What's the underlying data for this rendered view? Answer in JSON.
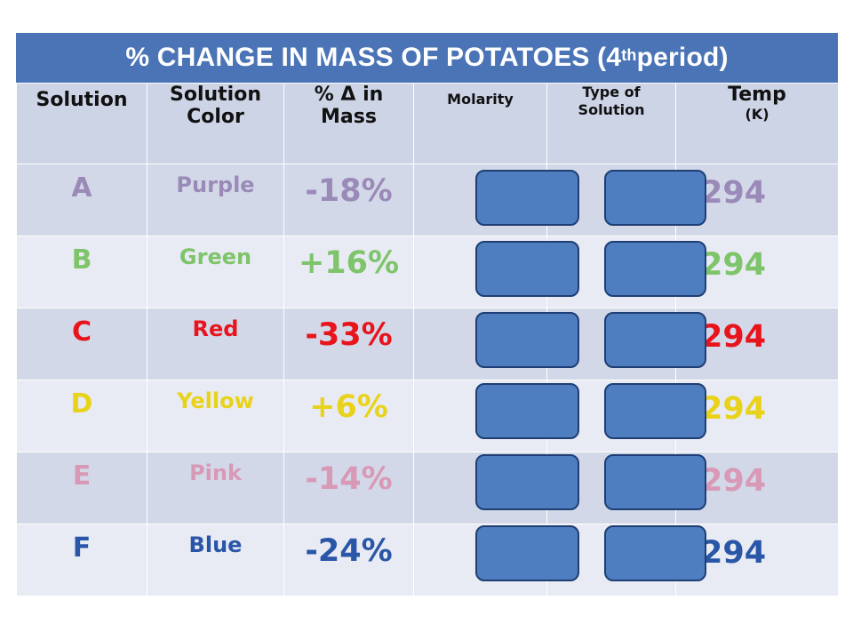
{
  "title": {
    "main": "% CHANGE IN MASS OF POTATOES (4",
    "sup": "th",
    "tail": " period)"
  },
  "headers": {
    "solution": "Solution",
    "solution_color": "Solution Color",
    "pct_change": "% Δ in Mass",
    "molarity": "Molarity",
    "type_of_solution": "Type of Solution",
    "temp": "Temp",
    "temp_unit": "(K)"
  },
  "rows": [
    {
      "letter": "A",
      "color": "Purple",
      "pct": "-18%",
      "temp": "294",
      "text_color": "#9a8ab8"
    },
    {
      "letter": "B",
      "color": "Green",
      "pct": "+16%",
      "temp": "294",
      "text_color": "#7ec46a"
    },
    {
      "letter": "C",
      "color": "Red",
      "pct": "-33%",
      "temp": "294",
      "text_color": "#e8141c"
    },
    {
      "letter": "D",
      "color": "Yellow",
      "pct": "+6%",
      "temp": "294",
      "text_color": "#e8d21a"
    },
    {
      "letter": "E",
      "color": "Pink",
      "pct": "-14%",
      "temp": "294",
      "text_color": "#d899b6"
    },
    {
      "letter": "F",
      "color": "Blue",
      "pct": "-24%",
      "temp": "294",
      "text_color": "#2a56a8"
    }
  ],
  "colors": {
    "title_bar": "#4a74b6",
    "cover_box": "#4e7ec0",
    "header_bg": "#cdd4e6"
  }
}
